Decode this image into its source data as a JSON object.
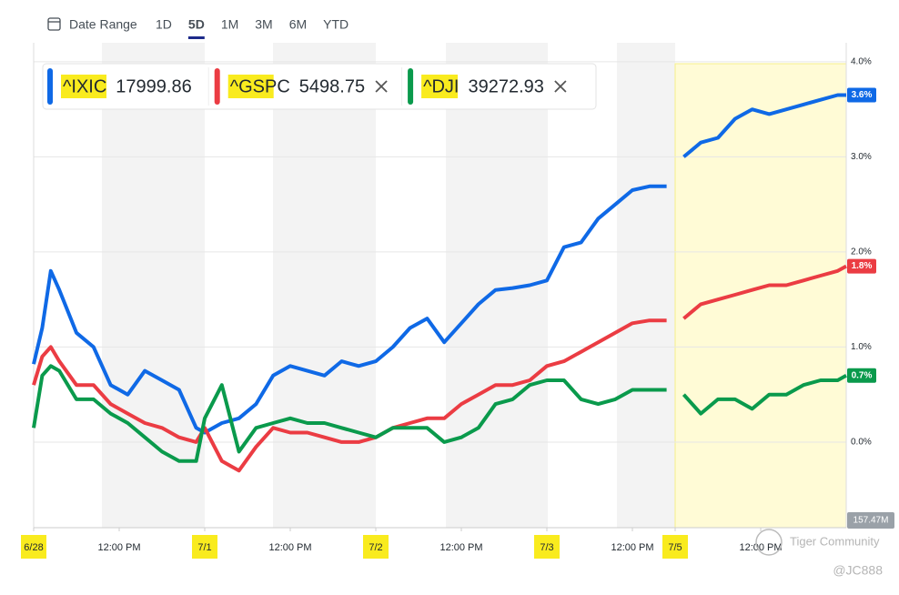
{
  "toolbar": {
    "date_range": "Date Range",
    "ranges": [
      "1D",
      "5D",
      "1M",
      "3M",
      "6M",
      "YTD"
    ],
    "active_index": 1
  },
  "chart_data": {
    "type": "line",
    "x": [
      0,
      0.05,
      0.1,
      0.15,
      0.25,
      0.35,
      0.45,
      0.55,
      0.65,
      0.75,
      0.85,
      0.95,
      1.0,
      1.1,
      1.2,
      1.3,
      1.4,
      1.5,
      1.6,
      1.7,
      1.8,
      1.9,
      2.0,
      2.1,
      2.2,
      2.3,
      2.4,
      2.5,
      2.6,
      2.7,
      2.8,
      2.9,
      3.0,
      3.1,
      3.2,
      3.3,
      3.4,
      3.5,
      3.6,
      3.7,
      3.75,
      3.8,
      3.9,
      4.0,
      4.1,
      4.2,
      4.3,
      4.4,
      4.5,
      4.6,
      4.7,
      4.75
    ],
    "series": [
      {
        "name": "^IXIC",
        "price": "17999.86",
        "color": "#0f69e6",
        "end_label": "3.6%",
        "values": [
          0.82,
          1.2,
          1.8,
          1.6,
          1.15,
          1.0,
          0.6,
          0.5,
          0.75,
          0.65,
          0.55,
          0.15,
          0.1,
          0.2,
          0.25,
          0.4,
          0.7,
          0.8,
          0.75,
          0.7,
          0.85,
          0.8,
          0.85,
          1.0,
          1.2,
          1.3,
          1.05,
          1.25,
          1.45,
          1.6,
          1.62,
          1.65,
          1.7,
          2.05,
          2.1,
          2.35,
          2.5,
          2.65,
          2.69,
          2.69,
          null,
          3.0,
          3.15,
          3.2,
          3.4,
          3.5,
          3.45,
          3.5,
          3.55,
          3.6,
          3.65,
          3.65
        ]
      },
      {
        "name": "^GSPC",
        "price": "5498.75",
        "color": "#eb3c43",
        "end_label": "1.8%",
        "values": [
          0.6,
          0.9,
          1.0,
          0.85,
          0.6,
          0.6,
          0.4,
          0.3,
          0.2,
          0.15,
          0.05,
          0.0,
          0.15,
          -0.2,
          -0.3,
          -0.05,
          0.15,
          0.1,
          0.1,
          0.05,
          0.0,
          0.0,
          0.05,
          0.15,
          0.2,
          0.25,
          0.25,
          0.4,
          0.5,
          0.6,
          0.6,
          0.65,
          0.8,
          0.85,
          0.95,
          1.05,
          1.15,
          1.25,
          1.28,
          1.28,
          null,
          1.3,
          1.45,
          1.5,
          1.55,
          1.6,
          1.65,
          1.65,
          1.7,
          1.75,
          1.8,
          1.85
        ]
      },
      {
        "name": "^DJI",
        "price": "39272.93",
        "color": "#0a9a4c",
        "end_label": "0.7%",
        "values": [
          0.15,
          0.7,
          0.8,
          0.75,
          0.45,
          0.45,
          0.3,
          0.2,
          0.05,
          -0.1,
          -0.2,
          -0.2,
          0.25,
          0.6,
          -0.1,
          0.15,
          0.2,
          0.25,
          0.2,
          0.2,
          0.15,
          0.1,
          0.05,
          0.15,
          0.15,
          0.15,
          0.0,
          0.05,
          0.15,
          0.4,
          0.45,
          0.6,
          0.65,
          0.65,
          0.45,
          0.4,
          0.45,
          0.55,
          0.55,
          0.55,
          null,
          0.5,
          0.3,
          0.45,
          0.45,
          0.35,
          0.5,
          0.5,
          0.6,
          0.65,
          0.65,
          0.7
        ]
      }
    ],
    "xlim": [
      0,
      4.75
    ],
    "xticks": [
      {
        "value": 0,
        "label": "6/28"
      },
      {
        "value": 0.5,
        "label": "12:00 PM"
      },
      {
        "value": 1,
        "label": "7/1"
      },
      {
        "value": 1.5,
        "label": "12:00 PM"
      },
      {
        "value": 2,
        "label": "7/2"
      },
      {
        "value": 2.5,
        "label": "12:00 PM"
      },
      {
        "value": 3,
        "label": "7/3"
      },
      {
        "value": 3.5,
        "label": "12:00 PM"
      },
      {
        "value": 3.75,
        "label": "7/5"
      },
      {
        "value": 4.25,
        "label": "12:00 PM"
      }
    ],
    "ylim": [
      -0.9,
      4.2
    ],
    "yticks": [
      {
        "value": 0,
        "label": "0.0%"
      },
      {
        "value": 1,
        "label": "1.0%"
      },
      {
        "value": 2,
        "label": "2.0%"
      },
      {
        "value": 3,
        "label": "3.0%"
      },
      {
        "value": 4,
        "label": "4.0%"
      }
    ],
    "grid": true,
    "volume_label": "157.47M"
  },
  "watermark": {
    "brand": "Tiger Community",
    "user": "@JC888"
  }
}
